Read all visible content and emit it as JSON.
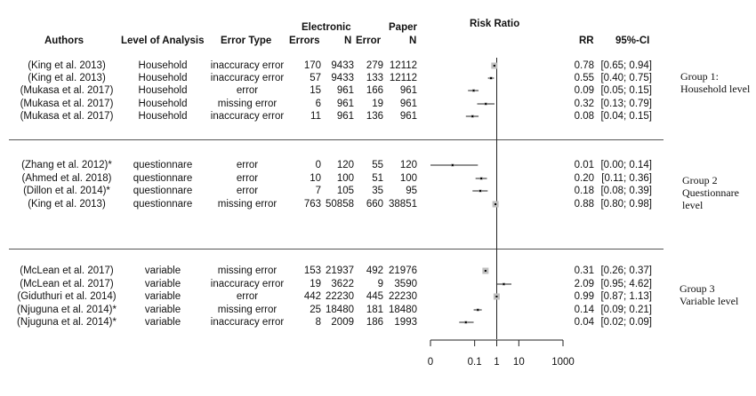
{
  "headers": {
    "authors": "Authors",
    "level": "Level of Analysis",
    "error_type": "Error Type",
    "electronic": "Electronic",
    "paper": "Paper",
    "errors": "Errors",
    "n1": "N",
    "error2": "Error",
    "n2": "N",
    "risk_ratio": "Risk Ratio",
    "rr": "RR",
    "ci": "95%-CI"
  },
  "groups": [
    {
      "label_line1": "Group 1:",
      "label_line2": "Household level",
      "label_line3": "",
      "rows": [
        {
          "author": "(King et al. 2013)",
          "level": "Household",
          "error_type": "inaccuracy error",
          "e_err": "170",
          "e_n": "9433",
          "p_err": "279",
          "p_n": "12112",
          "rr": "0.78",
          "ci": "[0.65; 0.94]"
        },
        {
          "author": "(King et al. 2013)",
          "level": "Household",
          "error_type": "inaccuracy error",
          "e_err": "57",
          "e_n": "9433",
          "p_err": "133",
          "p_n": "12112",
          "rr": "0.55",
          "ci": "[0.40; 0.75]"
        },
        {
          "author": "(Mukasa et al. 2017)",
          "level": "Household",
          "error_type": "error",
          "e_err": "15",
          "e_n": "961",
          "p_err": "166",
          "p_n": "961",
          "rr": "0.09",
          "ci": "[0.05; 0.15]"
        },
        {
          "author": "(Mukasa et al. 2017)",
          "level": "Household",
          "error_type": "missing error",
          "e_err": "6",
          "e_n": "961",
          "p_err": "19",
          "p_n": "961",
          "rr": "0.32",
          "ci": "[0.13; 0.79]"
        },
        {
          "author": "(Mukasa et al. 2017)",
          "level": "Household",
          "error_type": "inaccuracy error",
          "e_err": "11",
          "e_n": "961",
          "p_err": "136",
          "p_n": "961",
          "rr": "0.08",
          "ci": "[0.04; 0.15]"
        }
      ]
    },
    {
      "label_line1": "Group 2",
      "label_line2": "Questionnare",
      "label_line3": "level",
      "rows": [
        {
          "author": "(Zhang et al. 2012)*",
          "level": "questionnare",
          "error_type": "error",
          "e_err": "0",
          "e_n": "120",
          "p_err": "55",
          "p_n": "120",
          "rr": "0.01",
          "ci": "[0.00; 0.14]"
        },
        {
          "author": "(Ahmed et al. 2018)",
          "level": "questionnare",
          "error_type": "error",
          "e_err": "10",
          "e_n": "100",
          "p_err": "51",
          "p_n": "100",
          "rr": "0.20",
          "ci": "[0.11; 0.36]"
        },
        {
          "author": "(Dillon et al. 2014)*",
          "level": "questionnare",
          "error_type": "error",
          "e_err": "7",
          "e_n": "105",
          "p_err": "35",
          "p_n": "95",
          "rr": "0.18",
          "ci": "[0.08; 0.39]"
        },
        {
          "author": "(King et al. 2013)",
          "level": "questionnare",
          "error_type": "missing error",
          "e_err": "763",
          "e_n": "50858",
          "p_err": "660",
          "p_n": "38851",
          "rr": "0.88",
          "ci": "[0.80; 0.98]"
        }
      ]
    },
    {
      "label_line1": "Group 3",
      "label_line2": "Variable level",
      "label_line3": "",
      "rows": [
        {
          "author": "(McLean et al. 2017)",
          "level": "variable",
          "error_type": "missing error",
          "e_err": "153",
          "e_n": "21937",
          "p_err": "492",
          "p_n": "21976",
          "rr": "0.31",
          "ci": "[0.26; 0.37]"
        },
        {
          "author": "(McLean et al. 2017)",
          "level": "variable",
          "error_type": "inaccuracy error",
          "e_err": "19",
          "e_n": "3622",
          "p_err": "9",
          "p_n": "3590",
          "rr": "2.09",
          "ci": "[0.95; 4.62]"
        },
        {
          "author": "(Giduthuri et al. 2014)",
          "level": "variable",
          "error_type": "error",
          "e_err": "442",
          "e_n": "22230",
          "p_err": "445",
          "p_n": "22230",
          "rr": "0.99",
          "ci": "[0.87; 1.13]"
        },
        {
          "author": "(Njuguna et al. 2014)*",
          "level": "variable",
          "error_type": "missing error",
          "e_err": "25",
          "e_n": "18480",
          "p_err": "181",
          "p_n": "18480",
          "rr": "0.14",
          "ci": "[0.09; 0.21]"
        },
        {
          "author": "(Njuguna et al. 2014)*",
          "level": "variable",
          "error_type": "inaccuracy error",
          "e_err": "8",
          "e_n": "2009",
          "p_err": "186",
          "p_n": "1993",
          "rr": "0.04",
          "ci": "[0.02; 0.09]"
        }
      ]
    }
  ],
  "chart_data": {
    "type": "forest",
    "scale": "log",
    "xlim": [
      0.001,
      1000
    ],
    "reference_line": 1,
    "x_ticks": [
      0.001,
      0.1,
      1,
      10,
      1000
    ],
    "x_tick_labels": [
      "0",
      "0.1",
      "1",
      "10",
      "1000"
    ],
    "points": [
      {
        "rr": 0.78,
        "lo": 0.65,
        "hi": 0.94,
        "weight": "large"
      },
      {
        "rr": 0.55,
        "lo": 0.4,
        "hi": 0.75,
        "weight": "small"
      },
      {
        "rr": 0.09,
        "lo": 0.05,
        "hi": 0.15,
        "weight": "small"
      },
      {
        "rr": 0.32,
        "lo": 0.13,
        "hi": 0.79,
        "weight": "small"
      },
      {
        "rr": 0.08,
        "lo": 0.04,
        "hi": 0.15,
        "weight": "small"
      },
      {
        "rr": 0.01,
        "lo": 0.001,
        "hi": 0.14,
        "weight": "small"
      },
      {
        "rr": 0.2,
        "lo": 0.11,
        "hi": 0.36,
        "weight": "small"
      },
      {
        "rr": 0.18,
        "lo": 0.08,
        "hi": 0.39,
        "weight": "small"
      },
      {
        "rr": 0.88,
        "lo": 0.8,
        "hi": 0.98,
        "weight": "large"
      },
      {
        "rr": 0.31,
        "lo": 0.26,
        "hi": 0.37,
        "weight": "large"
      },
      {
        "rr": 2.09,
        "lo": 0.95,
        "hi": 4.62,
        "weight": "small"
      },
      {
        "rr": 0.99,
        "lo": 0.87,
        "hi": 1.13,
        "weight": "large"
      },
      {
        "rr": 0.14,
        "lo": 0.09,
        "hi": 0.21,
        "weight": "small"
      },
      {
        "rr": 0.04,
        "lo": 0.02,
        "hi": 0.09,
        "weight": "small"
      }
    ]
  }
}
